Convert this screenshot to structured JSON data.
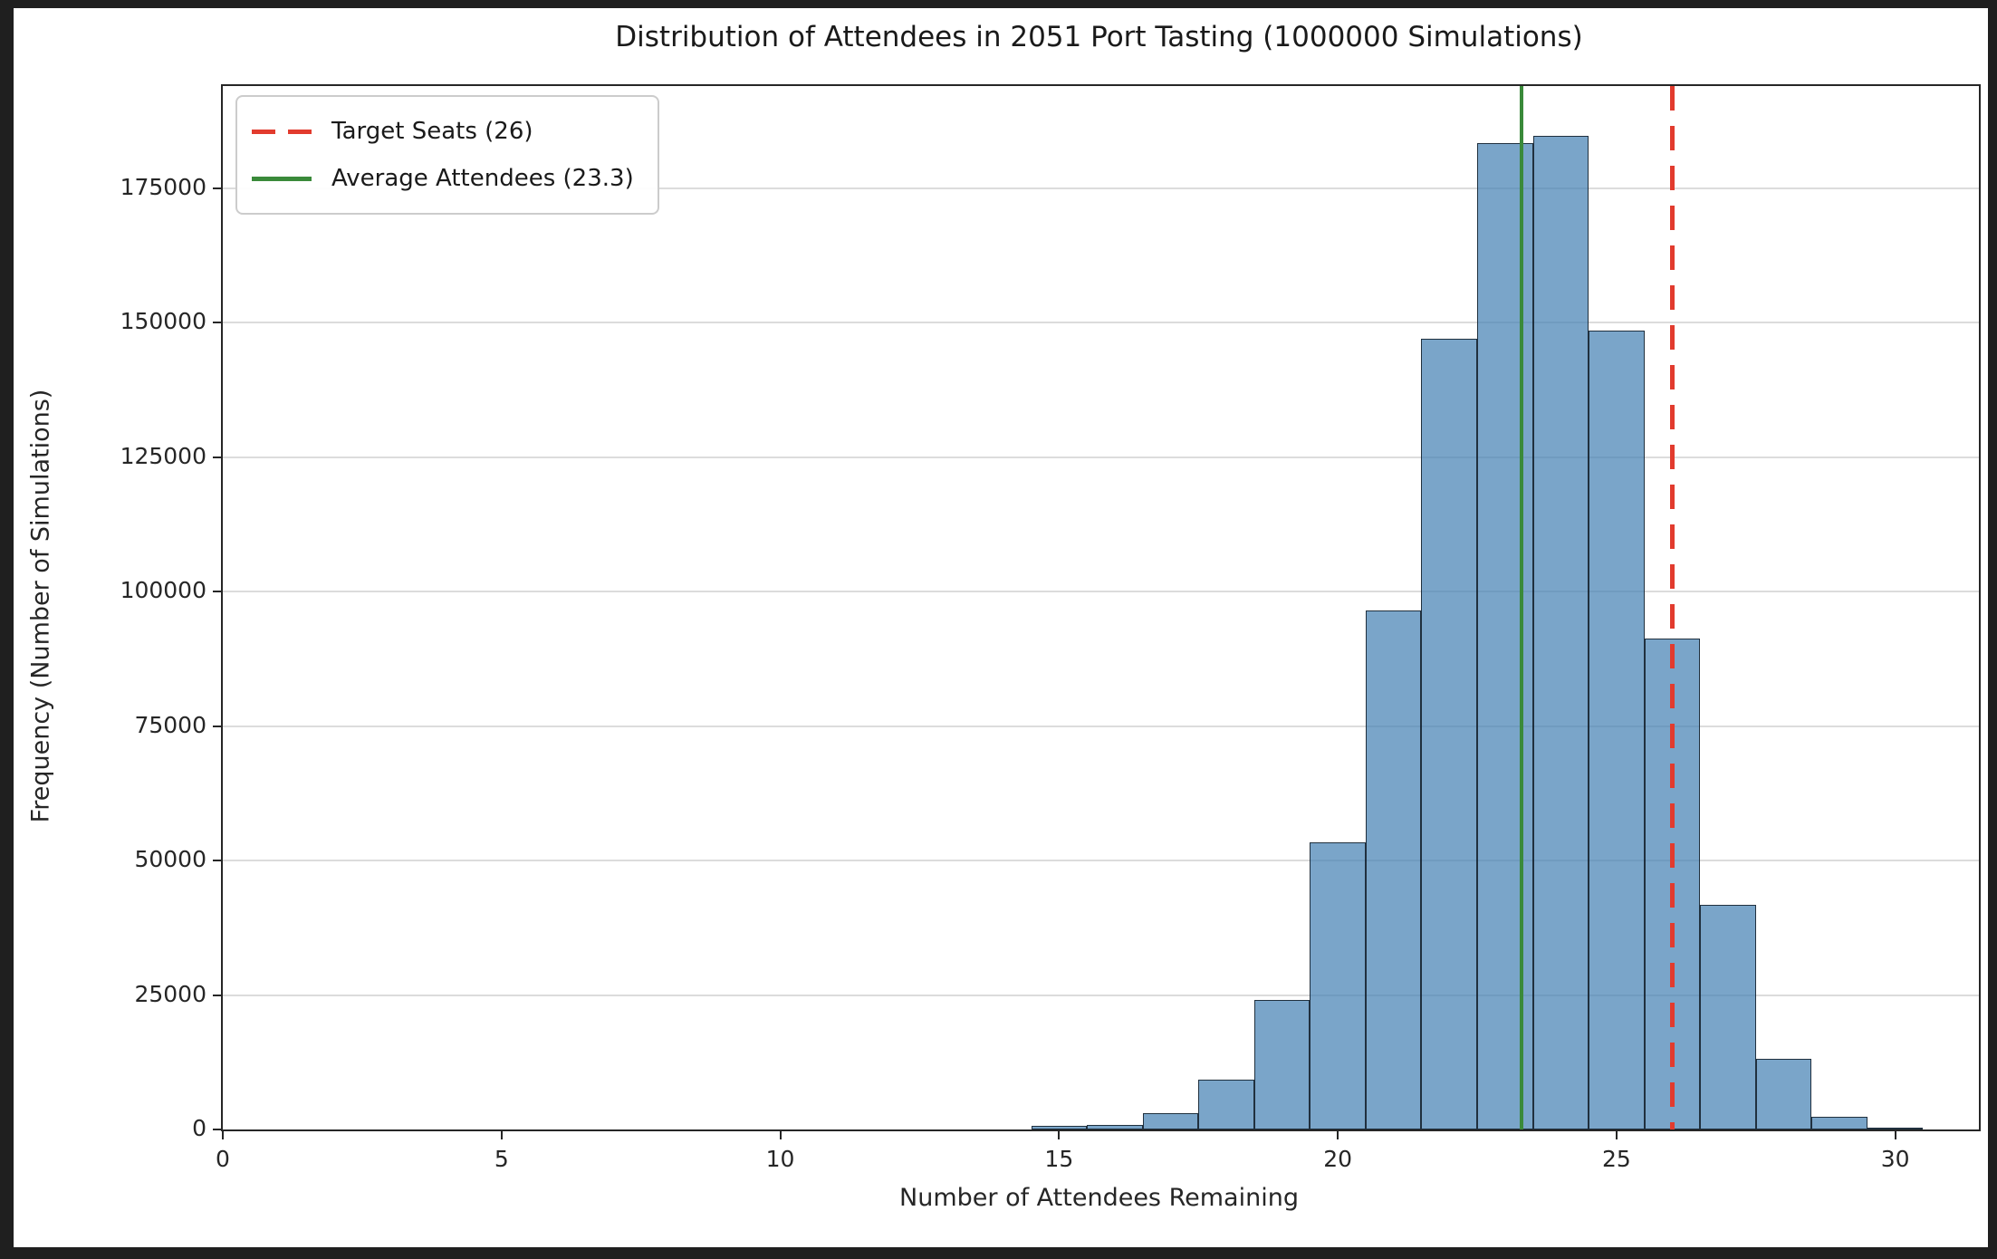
{
  "chart_data": {
    "type": "bar",
    "subtype": "histogram",
    "title": "Distribution of Attendees in 2051 Port Tasting (1000000 Simulations)",
    "xlabel": "Number of Attendees Remaining",
    "ylabel": "Frequency (Number of Simulations)",
    "categories": [
      15,
      16,
      17,
      18,
      19,
      20,
      21,
      22,
      23,
      24,
      25,
      26,
      27,
      28,
      29,
      30
    ],
    "values": [
      600,
      900,
      3100,
      9300,
      24000,
      53400,
      96500,
      147000,
      183400,
      184800,
      148600,
      91200,
      41800,
      13100,
      2400,
      300
    ],
    "bin_width": 1,
    "bin_alignment": "bars centered on integers, edges at half-integers",
    "xlim": [
      0,
      31.5
    ],
    "ylim": [
      0,
      194000
    ],
    "xticks": [
      0,
      5,
      10,
      15,
      20,
      25,
      30
    ],
    "yticks": [
      0,
      25000,
      50000,
      75000,
      100000,
      125000,
      150000,
      175000
    ],
    "grid": "horizontal",
    "grid_color": "#dcdcdc",
    "bar_color": "#4682B4",
    "bar_alpha": 0.72,
    "bar_edge_color": "#14202c",
    "vlines": [
      {
        "x": 26,
        "style": "dashed",
        "color": "#e23b2e",
        "label": "Target Seats (26)"
      },
      {
        "x": 23.3,
        "style": "solid",
        "color": "#3a8a3a",
        "label": "Average Attendees (23.3)"
      }
    ],
    "legend_position": "upper-left"
  },
  "legend": {
    "entries": [
      {
        "label": "Target Seats (26)",
        "color": "#e23b2e",
        "style": "dashed"
      },
      {
        "label": "Average Attendees (23.3)",
        "color": "#3a8a3a",
        "style": "solid"
      }
    ]
  }
}
